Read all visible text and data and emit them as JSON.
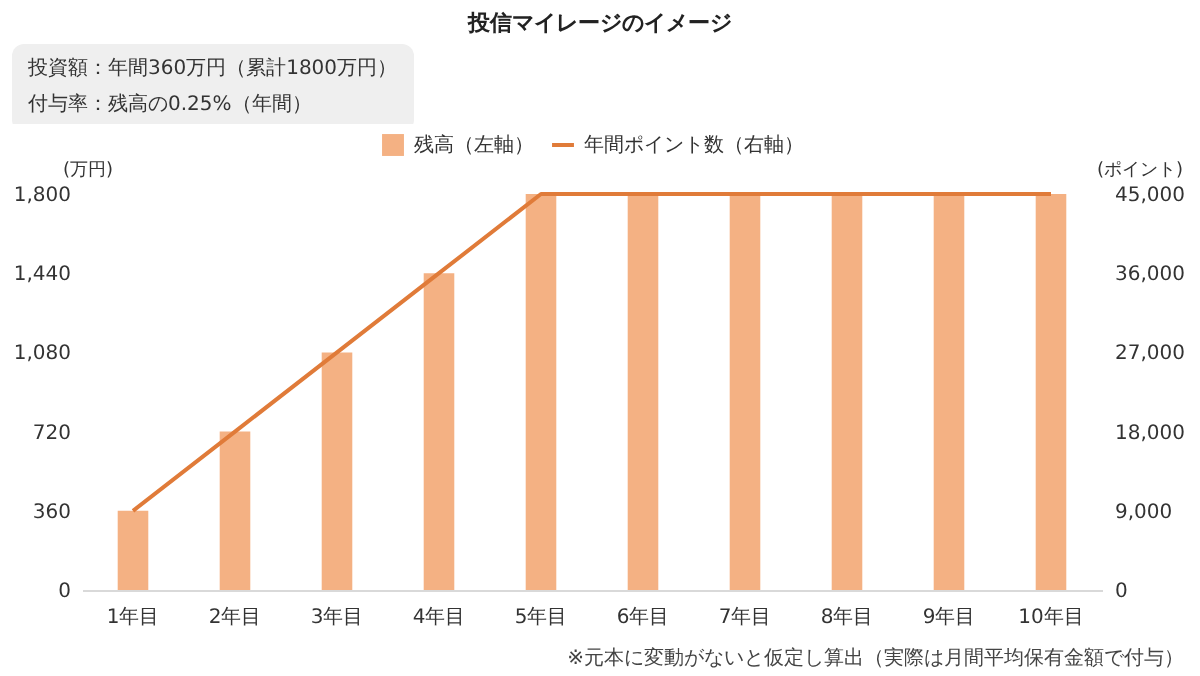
{
  "chart_data": {
    "type": "bar",
    "title": "投信マイレージのイメージ",
    "annotations": [
      "投資額：年間360万円（累計1800万円）",
      "付与率：残高の0.25%（年間）",
      "※元本に変動がないと仮定し算出（実際は月間平均保有金額で付与）"
    ],
    "categories": [
      "1年目",
      "2年目",
      "3年目",
      "4年目",
      "5年目",
      "6年目",
      "7年目",
      "8年目",
      "9年目",
      "10年目"
    ],
    "series": [
      {
        "name": "残高（左軸）",
        "color": "#f4b183",
        "values": [
          360,
          720,
          1080,
          1440,
          1800,
          1800,
          1800,
          1800,
          1800,
          1800
        ]
      },
      {
        "name": "年間ポイント数（右軸）",
        "type": "line",
        "axis": "y2",
        "color": "#e07b39",
        "values": [
          9000,
          18000,
          27000,
          36000,
          45000,
          45000,
          45000,
          45000,
          45000,
          45000
        ]
      }
    ],
    "ylabel": "(万円)",
    "y2label": "(ポイント)",
    "ylim": [
      0,
      1800
    ],
    "yticks": [
      0,
      360,
      720,
      {
        "value": 1080,
        "label": "1,080"
      },
      {
        "value": 1440,
        "label": "1,440"
      },
      {
        "value": 1800,
        "label": "1,800"
      }
    ],
    "y2lim": [
      0,
      45000
    ],
    "y2ticks": [
      0,
      {
        "value": 9000,
        "label": "9,000"
      },
      {
        "value": 18000,
        "label": "18,000"
      },
      {
        "value": 27000,
        "label": "27,000"
      },
      {
        "value": 36000,
        "label": "36,000"
      },
      {
        "value": 45000,
        "label": "45,000"
      }
    ],
    "grid": false,
    "legend": "top",
    "marker": "none"
  }
}
